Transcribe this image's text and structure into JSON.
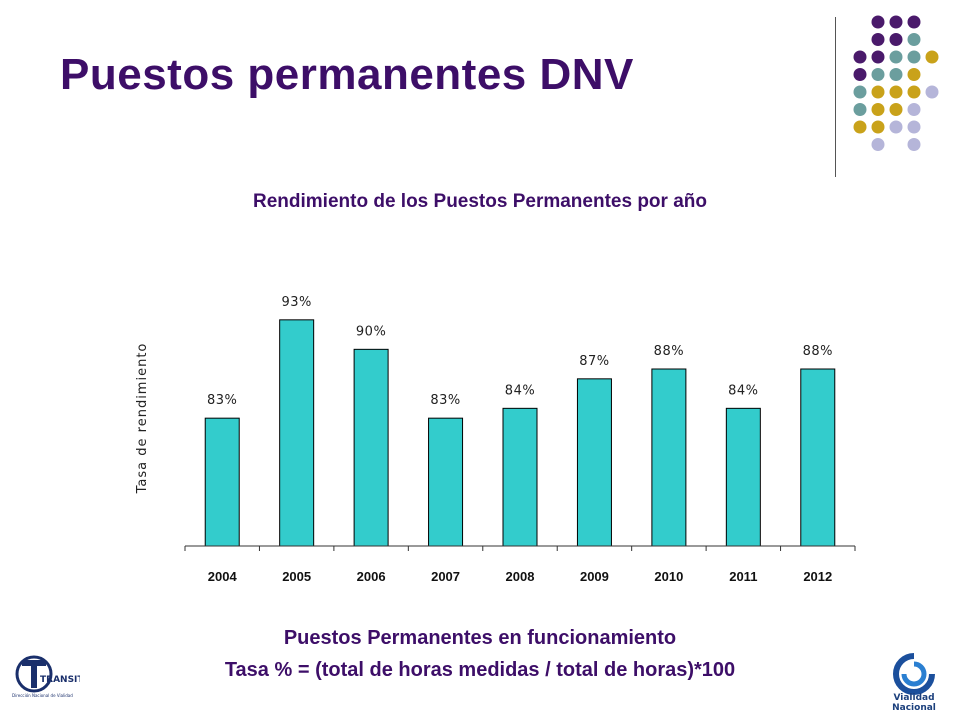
{
  "slide": {
    "title": "Puestos permanentes DNV",
    "caption_line1": "Puestos Permanentes en funcionamiento",
    "caption_line2": "Tasa % = (total de horas medidas / total de horas)*100"
  },
  "logos": {
    "left_text": "TRANSITO",
    "left_subtext": "Dirección Nacional de Vialidad",
    "right_text_1": "Vialidad",
    "right_text_2": "Nacional"
  },
  "colors": {
    "title": "#3d0e68",
    "bar": "#33cccc",
    "dot_purple": "#4a1a6b",
    "dot_teal": "#6b9e9e",
    "dot_gold": "#c9a21a",
    "dot_lavender": "#b5b5d9"
  },
  "chart_data": {
    "type": "bar",
    "title": "Rendimiento de los Puestos Permanentes por año",
    "xlabel": "",
    "ylabel": "Tasa de rendimiento",
    "categories": [
      "2004",
      "2005",
      "2006",
      "2007",
      "2008",
      "2009",
      "2010",
      "2011",
      "2012"
    ],
    "values": [
      83,
      93,
      90,
      83,
      84,
      87,
      88,
      84,
      88
    ],
    "data_labels": [
      "83%",
      "93%",
      "90%",
      "83%",
      "84%",
      "87%",
      "88%",
      "84%",
      "88%"
    ],
    "unit": "%",
    "grid": false,
    "legend": "none"
  }
}
